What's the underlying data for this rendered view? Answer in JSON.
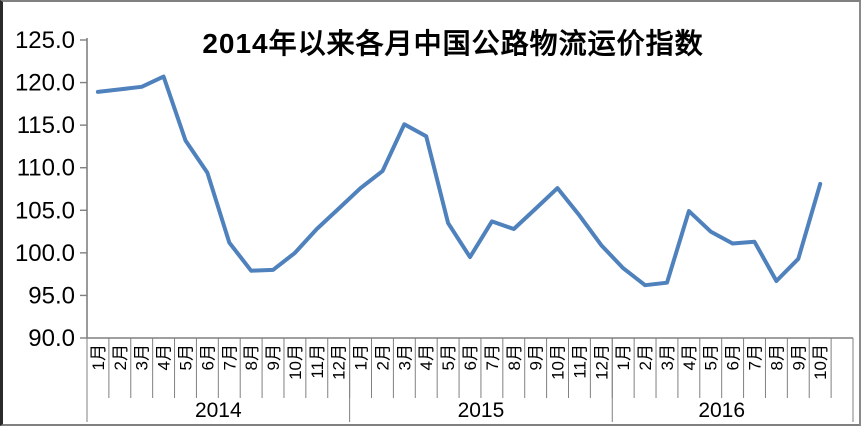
{
  "chart_data": {
    "type": "line",
    "title": "2014年以来各月中国公路物流运价指数",
    "xlabel": "",
    "ylabel": "",
    "ylim": [
      90,
      125
    ],
    "yticks": [
      125,
      120,
      115,
      110,
      105,
      100,
      95,
      90
    ],
    "ytick_decimals": 1,
    "grid": false,
    "legend": false,
    "line_color": "#4F81BD",
    "axis_color": "#808080",
    "text_color": "#000000",
    "groups": [
      {
        "year": "2014",
        "months": [
          "1月",
          "2月",
          "3月",
          "4月",
          "5月",
          "6月",
          "7月",
          "8月",
          "9月",
          "10月",
          "11月",
          "12月"
        ]
      },
      {
        "year": "2015",
        "months": [
          "1月",
          "2月",
          "3月",
          "4月",
          "5月",
          "6月",
          "7月",
          "8月",
          "9月",
          "10月",
          "11月",
          "12月"
        ]
      },
      {
        "year": "2016",
        "months": [
          "1月",
          "2月",
          "3月",
          "4月",
          "5月",
          "6月",
          "7月",
          "8月",
          "9月",
          "10月"
        ]
      }
    ],
    "series": [
      {
        "name": "中国公路物流运价指数",
        "values": [
          118.9,
          119.2,
          119.5,
          120.7,
          113.2,
          109.4,
          101.2,
          97.9,
          98.0,
          100.0,
          102.8,
          105.2,
          107.6,
          109.6,
          115.1,
          113.7,
          103.5,
          99.5,
          103.7,
          102.8,
          105.2,
          107.6,
          104.4,
          100.9,
          98.2,
          96.2,
          96.5,
          104.9,
          102.5,
          101.1,
          101.3,
          96.7,
          99.3,
          108.1
        ]
      }
    ]
  }
}
